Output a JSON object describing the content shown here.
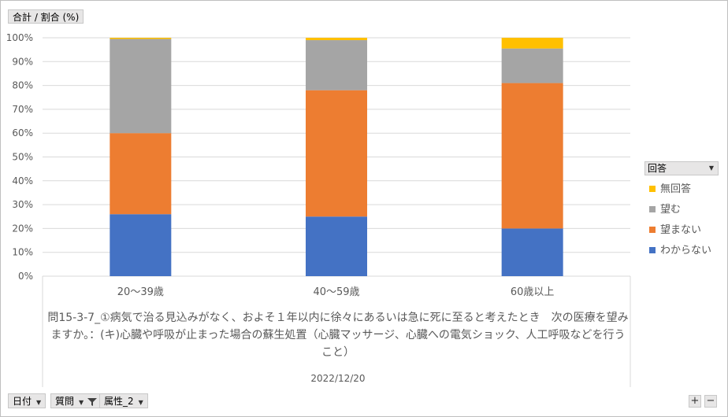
{
  "top_field": {
    "label": "合計 / 割合 (%)"
  },
  "filters": [
    {
      "label": "日付",
      "icon": "dropdown-arrow-icon"
    },
    {
      "label": "質問",
      "icon": "filter-icon"
    },
    {
      "label": "属性_2",
      "icon": "dropdown-arrow-icon"
    }
  ],
  "legend": {
    "title": "回答",
    "items": [
      {
        "name": "無回答",
        "color": "#ffc000"
      },
      {
        "name": "望む",
        "color": "#a5a5a5"
      },
      {
        "name": "望まない",
        "color": "#ed7d31"
      },
      {
        "name": "わからない",
        "color": "#4472c4"
      }
    ]
  },
  "question_text": "問15-3-7_①病気で治る見込みがなく、およそ１年以内に徐々にあるいは急に死に至ると考えたとき　次の医療を望みますか。：(キ)心臓や呼吸が止まった場合の蘇生処置（心臓マッサージ、心臓への電気ショック、人工呼吸などを行うこと）",
  "date_label": "2022/12/20",
  "chart_data": {
    "type": "bar",
    "stacked": true,
    "categories": [
      "20〜39歳",
      "40〜59歳",
      "60歳以上"
    ],
    "series": [
      {
        "name": "わからない",
        "color": "#4472c4",
        "values": [
          26,
          25,
          20
        ]
      },
      {
        "name": "望まない",
        "color": "#ed7d31",
        "values": [
          34,
          53,
          61
        ]
      },
      {
        "name": "望む",
        "color": "#a5a5a5",
        "values": [
          39.5,
          21,
          14.5
        ]
      },
      {
        "name": "無回答",
        "color": "#ffc000",
        "values": [
          0.5,
          1,
          4.5
        ]
      }
    ],
    "yticks": [
      "0%",
      "10%",
      "20%",
      "30%",
      "40%",
      "50%",
      "60%",
      "70%",
      "80%",
      "90%",
      "100%"
    ],
    "ylim": [
      0,
      100
    ],
    "grid": true,
    "legend_position": "right"
  }
}
